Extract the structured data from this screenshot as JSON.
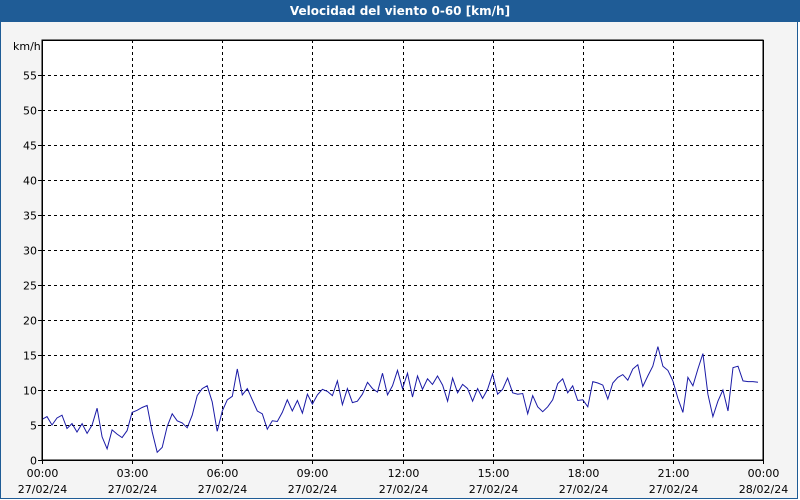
{
  "window": {
    "title": "Velocidad del viento 0-60 [km/h]"
  },
  "colors": {
    "title_bar": "#1f5c96",
    "series": "#1a1aa6",
    "grid": "#000000"
  },
  "chart_data": {
    "type": "line",
    "title": "Velocidad del viento 0-60 [km/h]",
    "ylabel": "km/h",
    "xlabel": "",
    "ylim": [
      0,
      60
    ],
    "y_ticks": [
      0,
      5,
      10,
      15,
      20,
      25,
      30,
      35,
      40,
      45,
      50,
      55
    ],
    "x_range": [
      "2024-02-27 00:00",
      "2024-02-28 00:00"
    ],
    "x_ticks": [
      {
        "time": "00:00",
        "date": "27/02/24"
      },
      {
        "time": "03:00",
        "date": "27/02/24"
      },
      {
        "time": "06:00",
        "date": "27/02/24"
      },
      {
        "time": "09:00",
        "date": "27/02/24"
      },
      {
        "time": "12:00",
        "date": "27/02/24"
      },
      {
        "time": "15:00",
        "date": "27/02/24"
      },
      {
        "time": "18:00",
        "date": "27/02/24"
      },
      {
        "time": "21:00",
        "date": "27/02/24"
      },
      {
        "time": "00:00",
        "date": "28/02/24"
      }
    ],
    "grid": true,
    "series": [
      {
        "x": [
          "00:00",
          "00:10",
          "00:20",
          "00:30",
          "00:40",
          "00:50",
          "01:00",
          "01:10",
          "01:20",
          "01:30",
          "01:40",
          "01:50",
          "02:00",
          "02:10",
          "02:20",
          "02:30",
          "02:40",
          "02:50",
          "03:00",
          "03:10",
          "03:20",
          "03:30",
          "03:40",
          "03:50",
          "04:00",
          "04:10",
          "04:20",
          "04:30",
          "04:40",
          "04:50",
          "05:00",
          "05:10",
          "05:20",
          "05:30",
          "05:40",
          "05:50",
          "06:00",
          "06:10",
          "06:20",
          "06:30",
          "06:40",
          "06:50",
          "07:00",
          "07:10",
          "07:20",
          "07:30",
          "07:40",
          "07:50",
          "08:00",
          "08:10",
          "08:20",
          "08:30",
          "08:40",
          "08:50",
          "09:00",
          "09:10",
          "09:20",
          "09:30",
          "09:40",
          "09:50",
          "10:00",
          "10:10",
          "10:20",
          "10:30",
          "10:40",
          "10:50",
          "11:00",
          "11:10",
          "11:20",
          "11:30",
          "11:40",
          "11:50",
          "12:00",
          "12:10",
          "12:20",
          "12:30",
          "12:40",
          "12:50",
          "13:00",
          "13:10",
          "13:20",
          "13:30",
          "13:40",
          "13:50",
          "14:00",
          "14:10",
          "14:20",
          "14:30",
          "14:40",
          "14:50",
          "15:00",
          "15:10",
          "15:20",
          "15:30",
          "15:40",
          "15:50",
          "16:00",
          "16:10",
          "16:20",
          "16:30",
          "16:40",
          "16:50",
          "17:00",
          "17:10",
          "17:20",
          "17:30",
          "17:40",
          "17:50",
          "18:00",
          "18:10",
          "18:20",
          "18:30",
          "18:40",
          "18:50",
          "19:00",
          "19:10",
          "19:20",
          "19:30",
          "19:40",
          "19:50",
          "20:00",
          "20:10",
          "20:20",
          "20:30",
          "20:40",
          "20:50",
          "21:00",
          "21:10",
          "21:20",
          "21:30",
          "21:40",
          "21:50",
          "22:00",
          "22:10",
          "22:20",
          "22:30",
          "22:40",
          "22:50",
          "23:00",
          "23:10",
          "23:20",
          "23:30",
          "23:40",
          "23:50"
        ],
        "y": [
          5.8,
          6.2,
          5.0,
          6.0,
          6.4,
          4.5,
          5.2,
          4.0,
          5.2,
          3.8,
          5.0,
          7.4,
          3.3,
          1.6,
          4.3,
          3.7,
          3.2,
          4.2,
          6.8,
          7.1,
          7.5,
          7.8,
          4.0,
          1.1,
          1.8,
          4.8,
          6.6,
          5.6,
          5.3,
          4.6,
          6.4,
          9.2,
          10.2,
          10.6,
          8.3,
          4.1,
          7.0,
          8.6,
          9.1,
          13.0,
          9.3,
          10.2,
          8.6,
          7.0,
          6.6,
          4.4,
          5.6,
          5.5,
          6.8,
          8.6,
          7.0,
          8.5,
          6.7,
          9.4,
          8.0,
          9.3,
          10.1,
          9.8,
          9.2,
          11.3,
          7.9,
          10.2,
          8.2,
          8.4,
          9.4,
          11.1,
          10.2,
          9.7,
          12.4,
          9.3,
          10.6,
          12.8,
          10.2,
          12.4,
          9.0,
          12.0,
          10.1,
          11.6,
          10.8,
          12.0,
          10.7,
          8.4,
          11.7,
          9.6,
          10.8,
          10.2,
          8.4,
          10.2,
          8.8,
          10.1,
          12.3,
          9.4,
          10.1,
          11.7,
          9.6,
          9.4,
          9.5,
          6.6,
          9.2,
          7.6,
          6.9,
          7.6,
          8.6,
          10.9,
          11.6,
          9.6,
          10.6,
          8.5,
          8.6,
          7.6,
          11.2,
          11.0,
          10.7,
          8.7,
          11.0,
          11.8,
          12.2,
          11.4,
          13.0,
          13.6,
          10.5,
          12.0,
          13.4,
          16.2,
          13.4,
          12.8,
          11.3,
          8.8,
          6.8,
          11.8,
          10.6,
          13.0,
          15.2,
          9.4,
          6.2,
          8.4,
          10.0,
          7.0,
          13.2,
          13.4,
          11.3,
          11.2,
          11.2,
          11.1
        ]
      }
    ]
  }
}
